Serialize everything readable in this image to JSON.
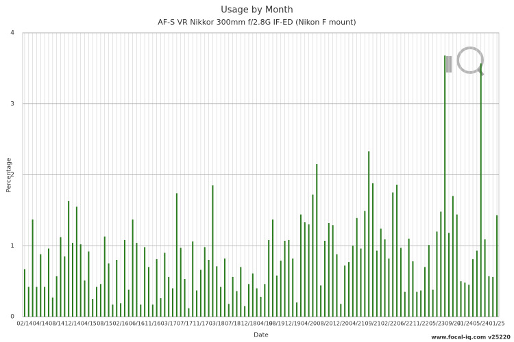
{
  "chart_data": {
    "type": "bar",
    "title": "Usage by Month",
    "subtitle": "AF-S VR Nikkor 300mm f/2.8G IF-ED (Nikon F mount)",
    "x_label": "Date",
    "y_label": "Percentage",
    "footer": "www.focal-iq.com  v25220",
    "color": "#2a7a1e",
    "grid": true,
    "ylim": [
      0,
      4
    ],
    "yticks": [
      0,
      1,
      2,
      3,
      4
    ],
    "categories": [
      "02/14",
      null,
      null,
      null,
      "04/14",
      null,
      null,
      null,
      "08/14",
      null,
      null,
      null,
      "12/14",
      null,
      null,
      null,
      "04/15",
      null,
      null,
      null,
      "08/15",
      null,
      null,
      null,
      "02/16",
      null,
      null,
      null,
      "06/16",
      null,
      null,
      null,
      "11/16",
      null,
      null,
      null,
      "03/17",
      null,
      null,
      null,
      "07/17",
      null,
      null,
      null,
      "11/17",
      null,
      null,
      null,
      "03/18",
      null,
      null,
      null,
      "07/18",
      null,
      null,
      null,
      "12/18",
      null,
      null,
      null,
      "04/19",
      null,
      null,
      "08/19",
      null,
      null,
      null,
      "12/19",
      null,
      null,
      null,
      "04/20",
      null,
      null,
      null,
      "08/20",
      null,
      null,
      null,
      "12/20",
      null,
      null,
      null,
      "04/21",
      null,
      null,
      null,
      "09/21",
      null,
      null,
      null,
      "02/22",
      null,
      null,
      null,
      "06/22",
      null,
      null,
      null,
      "11/22",
      null,
      null,
      null,
      "05/23",
      null,
      null,
      null,
      "09/23",
      null,
      null,
      "01/24",
      null,
      null,
      null,
      "05/24",
      null,
      null,
      null,
      "01/25"
    ],
    "values": [
      0.67,
      0.42,
      1.37,
      0.42,
      0.88,
      0.42,
      0.96,
      0.27,
      0.57,
      1.12,
      0.85,
      1.63,
      1.04,
      1.55,
      1.02,
      0.51,
      0.92,
      0.25,
      0.42,
      0.46,
      1.13,
      0.75,
      0.17,
      0.8,
      0.19,
      1.08,
      0.38,
      1.37,
      1.04,
      0.17,
      0.98,
      0.7,
      0.17,
      0.81,
      0.26,
      0.9,
      0.56,
      0.4,
      1.74,
      0.97,
      0.53,
      0.12,
      1.06,
      0.37,
      0.66,
      0.98,
      0.8,
      1.85,
      0.71,
      0.42,
      0.82,
      0.18,
      0.56,
      0.36,
      0.7,
      0.15,
      0.46,
      0.61,
      0.4,
      0.28,
      0.46,
      1.08,
      1.37,
      0.58,
      0.79,
      1.07,
      1.08,
      0.82,
      0.2,
      1.44,
      1.33,
      1.3,
      1.72,
      2.15,
      0.44,
      1.07,
      1.32,
      1.29,
      0.88,
      0.18,
      0.72,
      0.77,
      1.0,
      1.39,
      0.96,
      1.49,
      2.33,
      1.88,
      0.93,
      1.24,
      1.09,
      0.82,
      1.75,
      1.86,
      0.97,
      0.35,
      1.1,
      0.78,
      0.35,
      0.37,
      0.7,
      1.01,
      0.38,
      1.2,
      1.48,
      3.68,
      1.18,
      1.7,
      1.44,
      0.5,
      0.48,
      0.45,
      0.81,
      0.93,
      3.57,
      1.09,
      0.57,
      0.56,
      1.43
    ]
  }
}
